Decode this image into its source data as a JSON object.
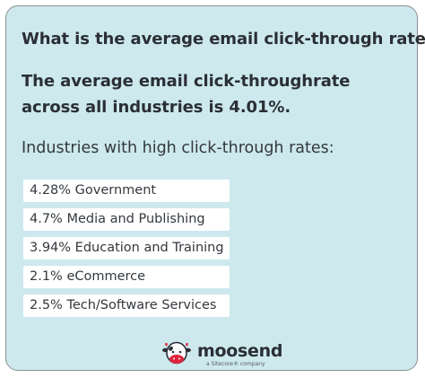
{
  "card": {
    "question": "What is the average email click-through rate?",
    "answer": "The average email click-throughrate across all industries is 4.01%.",
    "list_heading": "Industries with high click-through rates:",
    "industries": [
      "4.28% Government",
      "4.7% Media and Publishing",
      "3.94% Education and Training",
      "2.1% eCommerce",
      "2.5% Tech/Software Services"
    ]
  },
  "brand": {
    "name": "moosend",
    "tagline": "a Sitecore® company",
    "logo_icon": "cow-icon"
  },
  "colors": {
    "card_background": "#cde9ee",
    "card_border": "#8a8f93",
    "item_background": "#ffffff",
    "text": "#2a2f35",
    "logo_red": "#e0243b"
  }
}
